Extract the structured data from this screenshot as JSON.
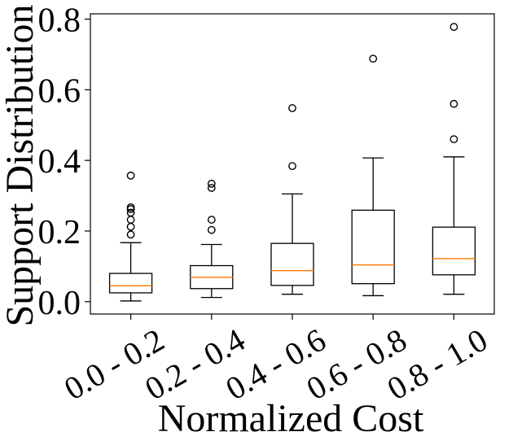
{
  "chart_data": {
    "type": "boxplot",
    "title": "",
    "xlabel": "Normalized Cost",
    "ylabel": "Support Distribution",
    "ylim": [
      -0.035,
      0.815
    ],
    "y_ticks": [
      0.0,
      0.2,
      0.4,
      0.6,
      0.8
    ],
    "y_tick_labels": [
      "0.0",
      "0.2",
      "0.4",
      "0.6",
      "0.8"
    ],
    "categories": [
      "0.0 - 0.2",
      "0.2 - 0.4",
      "0.4 - 0.6",
      "0.6 - 0.8",
      "0.8 - 1.0"
    ],
    "boxes": [
      {
        "category": "0.0 - 0.2",
        "whisker_low": 0.002,
        "q1": 0.025,
        "median": 0.045,
        "q3": 0.08,
        "whisker_high": 0.167,
        "outliers": [
          0.19,
          0.212,
          0.232,
          0.252,
          0.262,
          0.267,
          0.357
        ]
      },
      {
        "category": "0.2 - 0.4",
        "whisker_low": 0.012,
        "q1": 0.037,
        "median": 0.069,
        "q3": 0.102,
        "whisker_high": 0.162,
        "outliers": [
          0.203,
          0.232,
          0.322,
          0.334
        ]
      },
      {
        "category": "0.4 - 0.6",
        "whisker_low": 0.021,
        "q1": 0.046,
        "median": 0.088,
        "q3": 0.165,
        "whisker_high": 0.305,
        "outliers": [
          0.384,
          0.548
        ]
      },
      {
        "category": "0.6 - 0.8",
        "whisker_low": 0.017,
        "q1": 0.051,
        "median": 0.104,
        "q3": 0.259,
        "whisker_high": 0.407,
        "outliers": [
          0.688
        ]
      },
      {
        "category": "0.8 - 1.0",
        "whisker_low": 0.021,
        "q1": 0.076,
        "median": 0.122,
        "q3": 0.211,
        "whisker_high": 0.41,
        "outliers": [
          0.46,
          0.56,
          0.778
        ]
      }
    ],
    "colors": {
      "box": "#000000",
      "median": "#ff7f0e",
      "outlier_edge": "#000000"
    },
    "grid": false,
    "legend": "none"
  }
}
